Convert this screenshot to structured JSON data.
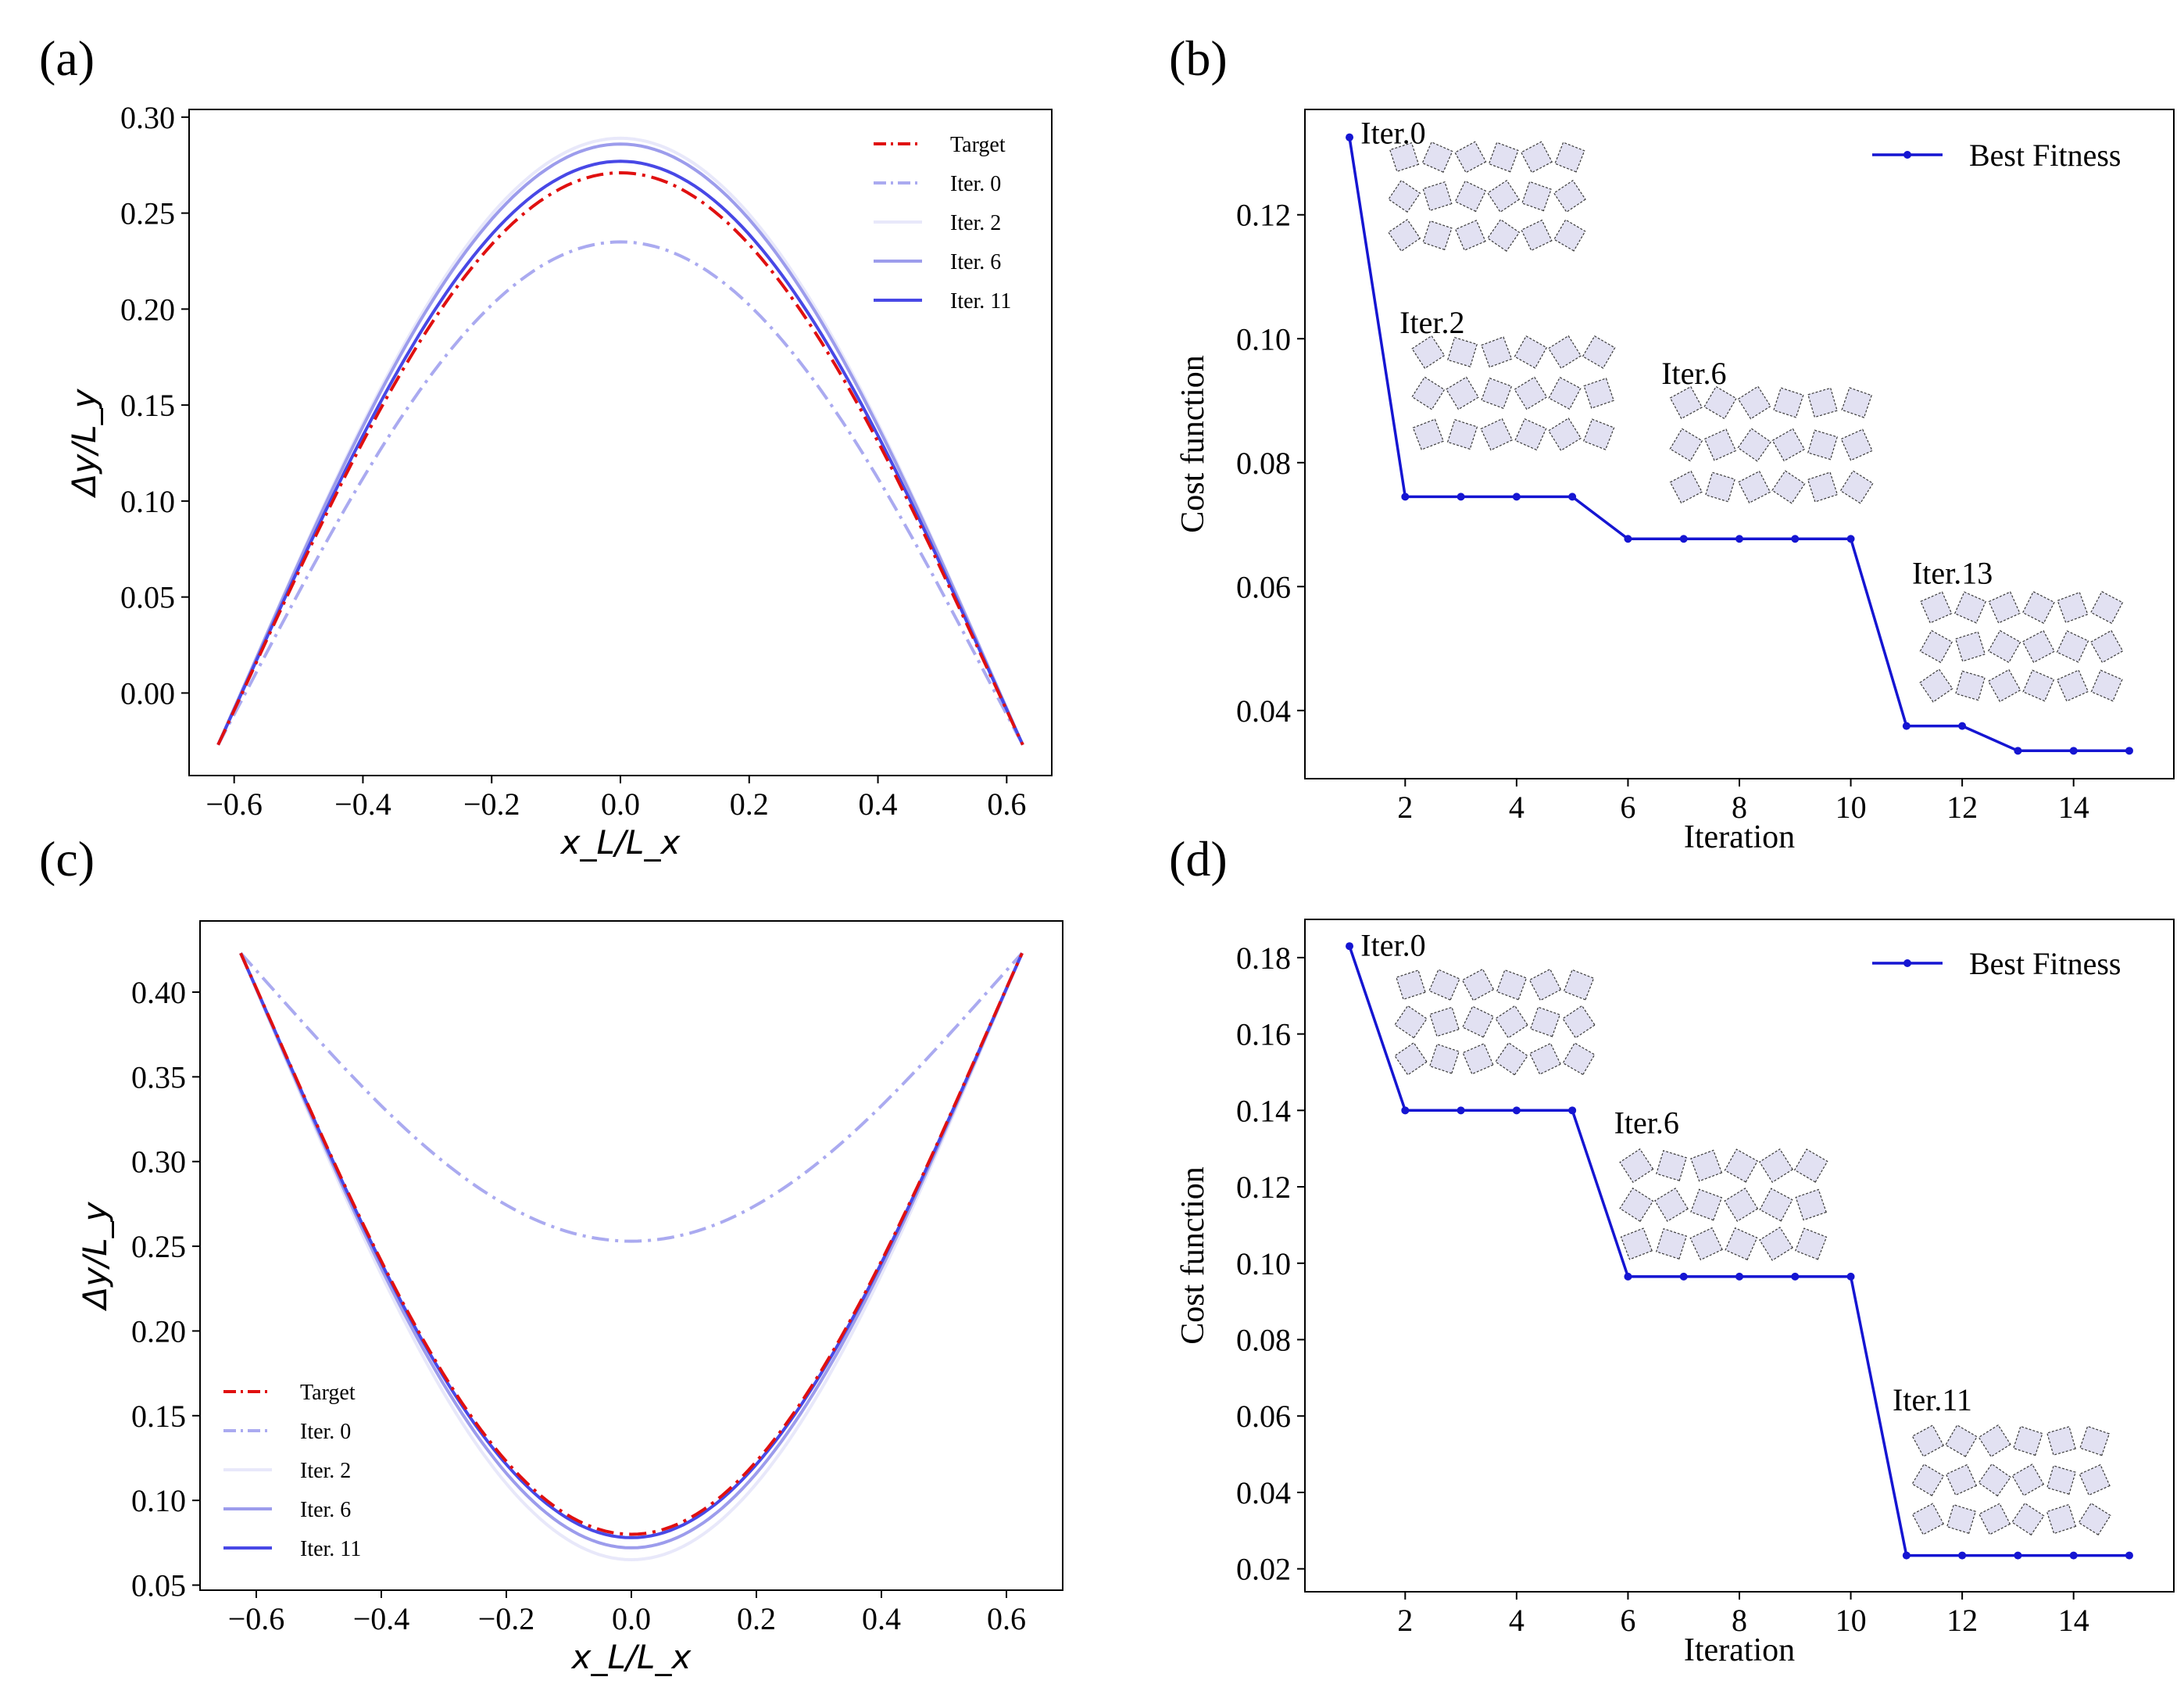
{
  "colors": {
    "target": "#e01010",
    "iter0": "#aaaaf0",
    "iter2": "#e8e8fa",
    "iter6": "#9c9cec",
    "iter11": "#4848e6",
    "best": "#1515d2"
  },
  "chart_data": [
    {
      "type": "line",
      "panel_label": "(a)",
      "xlabel": "x_L/L_x",
      "ylabel": "Δy/L_y",
      "xlim": [
        -0.67,
        0.67
      ],
      "ylim": [
        -0.043,
        0.304
      ],
      "xticks": [
        -0.6,
        -0.4,
        -0.2,
        0.0,
        0.2,
        0.4,
        0.6
      ],
      "xtick_labels": [
        "−0.6",
        "−0.4",
        "−0.2",
        "0.0",
        "0.2",
        "0.4",
        "0.6"
      ],
      "yticks": [
        0.0,
        0.05,
        0.1,
        0.15,
        0.2,
        0.25,
        0.3
      ],
      "ytick_labels": [
        "0.00",
        "0.05",
        "0.10",
        "0.15",
        "0.20",
        "0.25",
        "0.30"
      ],
      "legend_position": "top-right",
      "series": [
        {
          "name": "Target",
          "style": "dashdot",
          "color_key": "target",
          "x_end": 0.625,
          "y_end": -0.027,
          "y_mid": 0.271
        },
        {
          "name": "Iter. 0",
          "style": "dashdot",
          "color_key": "iter0",
          "x_end": 0.625,
          "y_end": -0.027,
          "y_mid": 0.235
        },
        {
          "name": "Iter. 2",
          "style": "solid",
          "color_key": "iter2",
          "x_end": 0.625,
          "y_end": -0.027,
          "y_mid": 0.289
        },
        {
          "name": "Iter. 6",
          "style": "solid",
          "color_key": "iter6",
          "x_end": 0.625,
          "y_end": -0.027,
          "y_mid": 0.286
        },
        {
          "name": "Iter. 11",
          "style": "solid",
          "color_key": "iter11",
          "x_end": 0.625,
          "y_end": -0.027,
          "y_mid": 0.277
        }
      ]
    },
    {
      "type": "line",
      "panel_label": "(b)",
      "xlabel": "Iteration",
      "ylabel": "Cost function",
      "xlim": [
        0.2,
        15.8
      ],
      "ylim": [
        0.029,
        0.137
      ],
      "xticks": [
        2,
        4,
        6,
        8,
        10,
        12,
        14
      ],
      "xtick_labels": [
        "2",
        "4",
        "6",
        "8",
        "10",
        "12",
        "14"
      ],
      "yticks": [
        0.04,
        0.06,
        0.08,
        0.1,
        0.12
      ],
      "ytick_labels": [
        "0.04",
        "0.06",
        "0.08",
        "0.10",
        "0.12"
      ],
      "legend_position": "top-right",
      "series": [
        {
          "name": "Best Fitness",
          "color_key": "best",
          "x": [
            1,
            2,
            3,
            4,
            5,
            6,
            7,
            8,
            9,
            10,
            11,
            12,
            13,
            14,
            15
          ],
          "y": [
            0.1325,
            0.0745,
            0.0745,
            0.0745,
            0.0745,
            0.0677,
            0.0677,
            0.0677,
            0.0677,
            0.0677,
            0.0375,
            0.0375,
            0.0335,
            0.0335,
            0.0335
          ]
        }
      ],
      "annotations": [
        {
          "text": "Iter.0",
          "x": 1.2,
          "y": 0.1315
        },
        {
          "text": "Iter.2",
          "x": 1.9,
          "y": 0.1009
        },
        {
          "text": "Iter.6",
          "x": 6.6,
          "y": 0.0927
        },
        {
          "text": "Iter.13",
          "x": 11.1,
          "y": 0.0605
        }
      ]
    },
    {
      "type": "line",
      "panel_label": "(c)",
      "xlabel": "x_L/L_x",
      "ylabel": "Δy/L_y",
      "xlim": [
        -0.69,
        0.69
      ],
      "ylim": [
        0.047,
        0.442
      ],
      "xticks": [
        -0.6,
        -0.4,
        -0.2,
        0.0,
        0.2,
        0.4,
        0.6
      ],
      "xtick_labels": [
        "−0.6",
        "−0.4",
        "−0.2",
        "0.0",
        "0.2",
        "0.4",
        "0.6"
      ],
      "yticks": [
        0.05,
        0.1,
        0.15,
        0.2,
        0.25,
        0.3,
        0.35,
        0.4
      ],
      "ytick_labels": [
        "0.05",
        "0.10",
        "0.15",
        "0.20",
        "0.25",
        "0.30",
        "0.35",
        "0.40"
      ],
      "legend_position": "bottom-left",
      "series": [
        {
          "name": "Target",
          "style": "dashdot",
          "color_key": "target",
          "x_end": 0.625,
          "y_end": 0.423,
          "y_mid": 0.08
        },
        {
          "name": "Iter. 0",
          "style": "dashdot",
          "color_key": "iter0",
          "x_end": 0.625,
          "y_end": 0.423,
          "y_mid": 0.253
        },
        {
          "name": "Iter. 2",
          "style": "solid",
          "color_key": "iter2",
          "x_end": 0.625,
          "y_end": 0.423,
          "y_mid": 0.065
        },
        {
          "name": "Iter. 6",
          "style": "solid",
          "color_key": "iter6",
          "x_end": 0.625,
          "y_end": 0.423,
          "y_mid": 0.072
        },
        {
          "name": "Iter. 11",
          "style": "solid",
          "color_key": "iter11",
          "x_end": 0.625,
          "y_end": 0.423,
          "y_mid": 0.078
        }
      ]
    },
    {
      "type": "line",
      "panel_label": "(d)",
      "xlabel": "Iteration",
      "ylabel": "Cost function",
      "xlim": [
        0.2,
        15.8
      ],
      "ylim": [
        0.014,
        0.19
      ],
      "xticks": [
        2,
        4,
        6,
        8,
        10,
        12,
        14
      ],
      "xtick_labels": [
        "2",
        "4",
        "6",
        "8",
        "10",
        "12",
        "14"
      ],
      "yticks": [
        0.02,
        0.04,
        0.06,
        0.08,
        0.1,
        0.12,
        0.14,
        0.16,
        0.18
      ],
      "ytick_labels": [
        "0.02",
        "0.04",
        "0.06",
        "0.08",
        "0.10",
        "0.12",
        "0.14",
        "0.16",
        "0.18"
      ],
      "legend_position": "top-right",
      "series": [
        {
          "name": "Best Fitness",
          "color_key": "best",
          "x": [
            1,
            2,
            3,
            4,
            5,
            6,
            7,
            8,
            9,
            10,
            11,
            12,
            13,
            14,
            15
          ],
          "y": [
            0.183,
            0.14,
            0.14,
            0.14,
            0.14,
            0.0965,
            0.0965,
            0.0965,
            0.0965,
            0.0965,
            0.0235,
            0.0235,
            0.0235,
            0.0235,
            0.0235
          ]
        }
      ],
      "annotations": [
        {
          "text": "Iter.0",
          "x": 1.2,
          "y": 0.1805
        },
        {
          "text": "Iter.6",
          "x": 5.75,
          "y": 0.134
        },
        {
          "text": "Iter.11",
          "x": 10.75,
          "y": 0.0615
        }
      ]
    }
  ]
}
